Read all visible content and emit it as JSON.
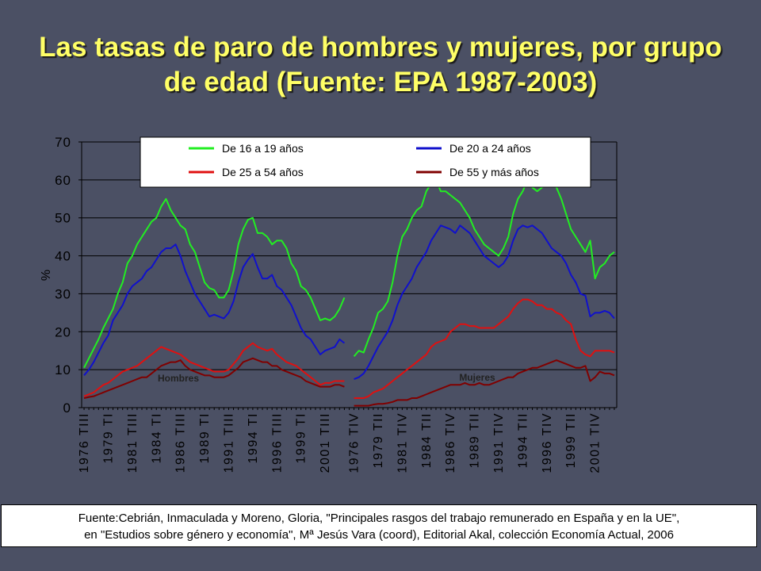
{
  "chart_data": {
    "type": "line",
    "title": "Las tasas de paro de hombres y mujeres, por grupo de edad (Fuente: EPA 1987-2003)",
    "y_label": "%",
    "ylim": [
      0,
      70
    ],
    "yticks": [
      0,
      10,
      20,
      30,
      40,
      50,
      60,
      70
    ],
    "grid": true,
    "legend": "top",
    "annotations": [
      "Hombres",
      "Mujeres"
    ],
    "source": [
      "Fuente:Cebrián, Inmaculada y Moreno, Gloria, \"Principales rasgos del trabajo remunerado en España y en la UE\",",
      "en \"Estudios sobre género y economía\", Mª Jesús Vara (coord), Editorial Akal, colección Economía Actual, 2006"
    ],
    "categories": [
      "1976 TIII",
      null,
      null,
      null,
      null,
      "1979 TI",
      null,
      null,
      null,
      null,
      "1981 TIII",
      null,
      null,
      null,
      null,
      "1984 TI",
      null,
      null,
      null,
      null,
      "1986 TIII",
      null,
      null,
      null,
      null,
      "1989 TI",
      null,
      null,
      null,
      null,
      "1991 TIII",
      null,
      null,
      null,
      null,
      "1994 TI",
      null,
      null,
      null,
      null,
      "1996 TIII",
      null,
      null,
      null,
      null,
      "1999 TI",
      null,
      null,
      null,
      null,
      "2001 TIII",
      null,
      null,
      null,
      null,
      null,
      "1976 TIV",
      null,
      null,
      null,
      null,
      "1979 TII",
      null,
      null,
      null,
      null,
      "1981 TIV",
      null,
      null,
      null,
      null,
      "1984 TII",
      null,
      null,
      null,
      null,
      "1986 TIV",
      null,
      null,
      null,
      null,
      "1989 TII",
      null,
      null,
      null,
      null,
      "1991 TIV",
      null,
      null,
      null,
      null,
      "1994 TII",
      null,
      null,
      null,
      null,
      "1996 TIV",
      null,
      null,
      null,
      null,
      "1999 TII",
      null,
      null,
      null,
      null,
      "2001 TIV",
      null,
      null,
      null,
      null
    ],
    "series": [
      {
        "name": "De 16 a 19 años",
        "color": "#22ee22",
        "values": [
          10.5,
          13,
          15.5,
          18,
          21,
          23.5,
          26,
          30,
          33,
          38,
          40,
          43,
          45,
          47,
          49,
          50,
          53,
          55,
          52,
          50,
          48,
          47,
          43,
          41,
          37,
          33,
          31.5,
          31,
          29,
          29,
          31,
          36,
          43,
          47,
          49.5,
          50,
          46,
          46,
          45,
          43,
          44,
          44,
          42,
          38,
          36,
          32,
          31,
          29,
          26,
          23,
          23.5,
          23,
          24,
          26,
          29,
          null,
          13.5,
          15,
          14.5,
          18,
          21,
          25,
          26,
          28,
          33,
          40,
          45,
          47,
          50,
          52,
          53,
          57,
          59,
          60,
          57,
          57,
          56,
          55,
          54,
          52,
          50,
          47,
          45,
          43,
          42,
          41,
          40,
          42,
          45,
          51,
          55,
          57,
          60,
          58,
          57,
          58,
          60,
          61,
          58,
          55,
          51,
          47,
          45,
          43,
          41,
          44,
          34,
          37,
          38,
          40,
          41
        ]
      },
      {
        "name": "De 20 a 24 años",
        "color": "#1010cc",
        "values": [
          8.5,
          10,
          12,
          14.5,
          17,
          19,
          23,
          25,
          27,
          30,
          32,
          33,
          34,
          36,
          37,
          39,
          41,
          42,
          42,
          43,
          40,
          36,
          33,
          30,
          28,
          26,
          24,
          24.5,
          24,
          23.5,
          25,
          28,
          33,
          37,
          39,
          40.5,
          37,
          34,
          34,
          35,
          32,
          31,
          29,
          27,
          24,
          21,
          19,
          18,
          16,
          14,
          15,
          15.5,
          16,
          18,
          17,
          null,
          7.5,
          8,
          9,
          11,
          13.5,
          16,
          18,
          20,
          23,
          27,
          30,
          32,
          34,
          37,
          39,
          41,
          44,
          46,
          48,
          47.5,
          47,
          46,
          48,
          47,
          46,
          44,
          42,
          40,
          39,
          38,
          37,
          38,
          40,
          44,
          47,
          48,
          47.5,
          48,
          47,
          46,
          44,
          42,
          41,
          40,
          38,
          35,
          33,
          30,
          29.5,
          24,
          25,
          25,
          25.5,
          25,
          23.5
        ]
      },
      {
        "name": "De 25 a 54 años",
        "color": "#e01010",
        "values": [
          3,
          3.5,
          4,
          5,
          6,
          6.5,
          7.5,
          8.5,
          9.5,
          10,
          10.5,
          11,
          12,
          13,
          14,
          15,
          16,
          15.5,
          15,
          14.5,
          14,
          13,
          12,
          11.5,
          11,
          10.5,
          10,
          9.5,
          9.5,
          9.5,
          10,
          11.5,
          13,
          15,
          16,
          17,
          16,
          15.5,
          15,
          15.5,
          14,
          13,
          12,
          11.5,
          11,
          10,
          9,
          8,
          7,
          6,
          6.5,
          6.5,
          7,
          7,
          7,
          null,
          2.5,
          2.5,
          2.5,
          3,
          4,
          4.5,
          5,
          6,
          7,
          8,
          9,
          10,
          11,
          12,
          13,
          14,
          16,
          17,
          17.5,
          18,
          20,
          21,
          22,
          22,
          21.5,
          21.5,
          21,
          21,
          21,
          21,
          22,
          23,
          24,
          26,
          27.5,
          28.5,
          28.5,
          28,
          27,
          27,
          26,
          26,
          25,
          24.5,
          23,
          22,
          18,
          15,
          14,
          13.5,
          15,
          15,
          15,
          15,
          14.5
        ]
      },
      {
        "name": "De 55 y más años",
        "color": "#800000",
        "values": [
          2.5,
          2.8,
          3,
          3.5,
          4,
          4.5,
          5,
          5.5,
          6,
          6.5,
          7,
          7.5,
          8,
          8,
          9,
          10,
          11,
          11.5,
          12,
          12,
          12.5,
          11,
          10,
          9.5,
          9,
          8.5,
          8.5,
          8,
          8,
          8,
          8.5,
          9.5,
          10.5,
          12,
          12.5,
          13,
          12.5,
          12,
          12,
          11,
          11,
          10,
          9.5,
          9,
          8.5,
          8,
          7,
          6.5,
          6,
          5.5,
          5.5,
          5.5,
          6,
          6,
          5.5,
          null,
          0.5,
          0.5,
          0.5,
          0.5,
          0.8,
          1,
          1,
          1.2,
          1.5,
          2,
          2,
          2,
          2.5,
          2.5,
          3,
          3.5,
          4,
          4.5,
          5,
          5.5,
          6,
          6,
          6,
          6.5,
          6,
          6,
          6.5,
          6,
          6,
          6.5,
          7,
          7.5,
          8,
          8,
          9,
          9.5,
          10,
          10.5,
          10.5,
          11,
          11.5,
          12,
          12.5,
          12,
          11.5,
          11,
          10.5,
          10.5,
          11,
          7,
          8,
          9.5,
          9,
          9,
          8.5
        ]
      }
    ]
  }
}
